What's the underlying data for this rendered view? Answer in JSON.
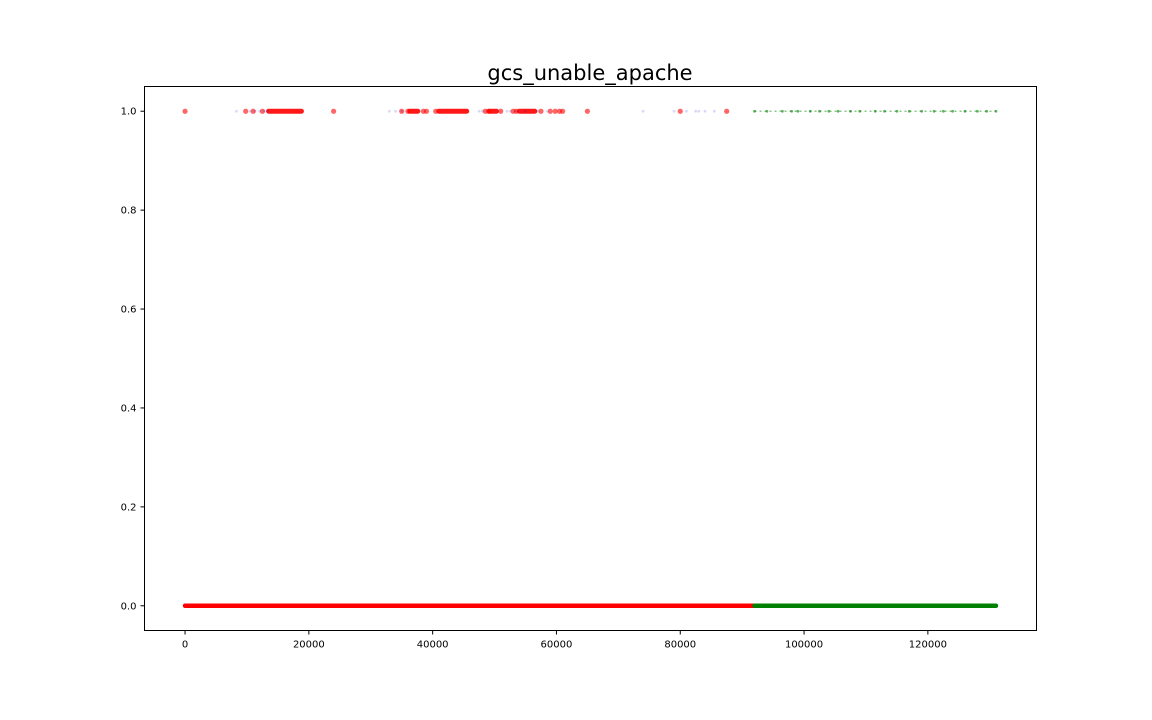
{
  "chart_data": {
    "type": "scatter",
    "title": "gcs_unable_apache",
    "xlabel": "",
    "ylabel": "",
    "xlim": [
      -6550,
      137550
    ],
    "ylim": [
      -0.05,
      1.05
    ],
    "xticks": [
      0,
      20000,
      40000,
      60000,
      80000,
      100000,
      120000
    ],
    "xtick_labels": [
      "0",
      "20000",
      "40000",
      "60000",
      "80000",
      "100000",
      "120000"
    ],
    "yticks": [
      0.0,
      0.2,
      0.4,
      0.6,
      0.8,
      1.0
    ],
    "ytick_labels": [
      "0.0",
      "0.2",
      "0.4",
      "0.6",
      "0.8",
      "1.0"
    ],
    "grid": false,
    "legend": "none",
    "series": [
      {
        "color": "#ff0000",
        "marker": "circle-large",
        "opacity": 0.6,
        "segments_y0": [
          [
            0,
            92000
          ]
        ],
        "points_y1": [
          0,
          9800,
          11000,
          12500,
          24000,
          35000,
          36000,
          38500,
          39000,
          40500,
          48500,
          49000,
          51000,
          53000,
          53500,
          57500,
          59000,
          59800,
          60500,
          61000,
          65000,
          80000,
          87500
        ],
        "clusters_y1": [
          [
            13500,
            18800
          ],
          [
            36300,
            37600
          ],
          [
            41000,
            45500
          ],
          [
            49200,
            50300
          ],
          [
            54000,
            56500
          ]
        ]
      },
      {
        "color": "#0000cc",
        "marker": "circle-small",
        "opacity": 0.15,
        "points_y1": [
          8300,
          10500,
          11300,
          12000,
          12800,
          13300,
          33000,
          34000,
          35000,
          47500,
          48000,
          52000,
          52500,
          53500,
          55000,
          57000,
          58500,
          74000,
          79000,
          81000,
          82500,
          83000,
          84000,
          85500
        ]
      },
      {
        "color": "#008000",
        "marker": "circle-small",
        "opacity": 0.6,
        "segments_y0": [
          [
            92000,
            131000
          ]
        ],
        "points_y1": [
          92000,
          94000,
          96500,
          98000,
          99000,
          101000,
          102500,
          104000,
          105500,
          107500,
          109000,
          111500,
          113000,
          115000,
          117000,
          119000,
          121000,
          122500,
          124000,
          126000,
          128000,
          129500,
          131000
        ],
        "clusters_y1": [
          [
            92000,
            131000
          ]
        ]
      }
    ]
  }
}
